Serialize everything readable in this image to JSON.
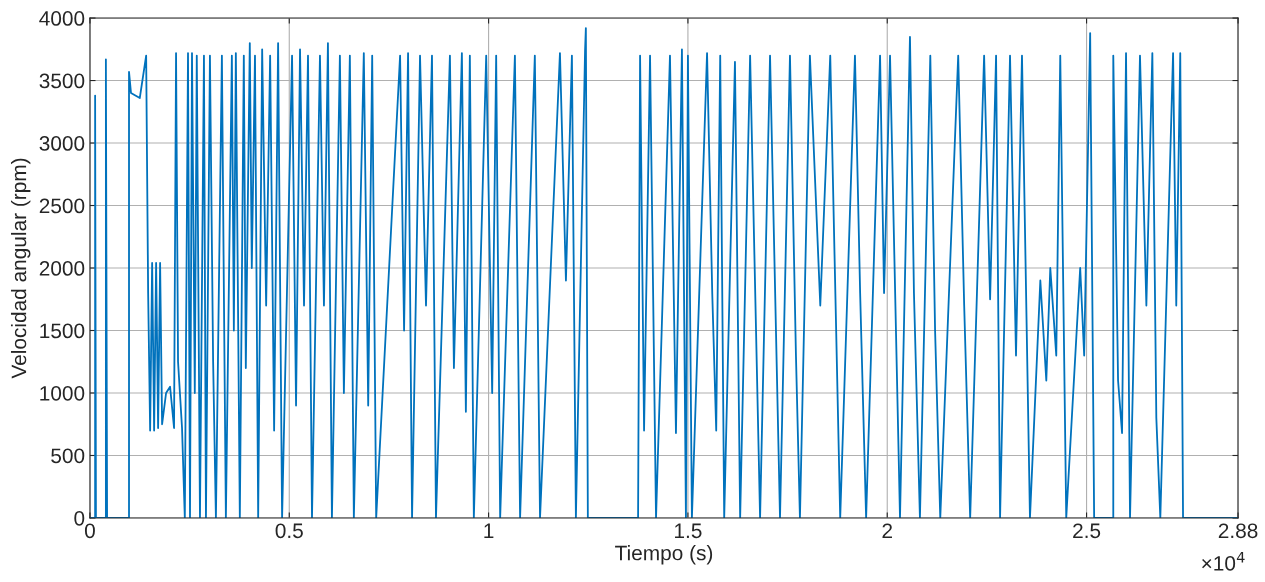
{
  "chart_data": {
    "type": "line",
    "xlabel": "Tiempo (s)",
    "ylabel": "Velocidad angular (rpm)",
    "annotations": [
      "×10$^{4}$"
    ],
    "xlim": [
      0,
      2.88
    ],
    "xticks": [
      0,
      0.5,
      1,
      1.5,
      2,
      2.5,
      2.88
    ],
    "ylim": [
      0,
      4000
    ],
    "yticks": [
      0,
      500,
      1000,
      1500,
      2000,
      2500,
      3000,
      3500,
      4000
    ],
    "grid": true,
    "line_style": "solid",
    "marker": "none",
    "series": [
      {
        "color": "#0072bd",
        "x": [
          0,
          0.013,
          0.013,
          0.015,
          0.04,
          0.04,
          0.043,
          0.098,
          0.098,
          0.103,
          0.125,
          0.141,
          0.146,
          0.151,
          0.156,
          0.161,
          0.166,
          0.171,
          0.176,
          0.181,
          0.191,
          0.201,
          0.211,
          0.216,
          0.221,
          0.231,
          0.238,
          0.246,
          0.251,
          0.256,
          0.263,
          0.268,
          0.276,
          0.286,
          0.291,
          0.301,
          0.309,
          0.316,
          0.331,
          0.336,
          0.341,
          0.356,
          0.361,
          0.366,
          0.376,
          0.386,
          0.391,
          0.401,
          0.406,
          0.414,
          0.422,
          0.432,
          0.442,
          0.452,
          0.462,
          0.472,
          0.482,
          0.507,
          0.517,
          0.527,
          0.537,
          0.547,
          0.557,
          0.577,
          0.587,
          0.597,
          0.607,
          0.627,
          0.637,
          0.652,
          0.662,
          0.687,
          0.698,
          0.708,
          0.718,
          0.778,
          0.788,
          0.798,
          0.808,
          0.828,
          0.843,
          0.858,
          0.868,
          0.903,
          0.913,
          0.933,
          0.943,
          0.953,
          0.963,
          0.994,
          1.009,
          1.019,
          1.029,
          1.066,
          1.079,
          1.116,
          1.129,
          1.179,
          1.194,
          1.209,
          1.219,
          1.242,
          1.244,
          1.249,
          1.375,
          1.38,
          1.39,
          1.405,
          1.42,
          1.455,
          1.47,
          1.485,
          1.495,
          1.5,
          1.51,
          1.548,
          1.561,
          1.571,
          1.581,
          1.591,
          1.618,
          1.631,
          1.656,
          1.681,
          1.706,
          1.731,
          1.756,
          1.771,
          1.781,
          1.806,
          1.832,
          1.857,
          1.882,
          1.919,
          1.932,
          1.947,
          1.982,
          1.992,
          2.007,
          2.032,
          2.057,
          2.067,
          2.082,
          2.108,
          2.12,
          2.133,
          2.178,
          2.193,
          2.208,
          2.243,
          2.258,
          2.273,
          2.283,
          2.308,
          2.323,
          2.338,
          2.358,
          2.384,
          2.399,
          2.409,
          2.424,
          2.434,
          2.449,
          2.484,
          2.494,
          2.509,
          2.519,
          2.567,
          2.567,
          2.579,
          2.589,
          2.599,
          2.609,
          2.634,
          2.65,
          2.665,
          2.675,
          2.685,
          2.717,
          2.725,
          2.735,
          2.742,
          2.88
        ],
        "values": [
          0,
          0,
          3380,
          0,
          0,
          3670,
          0,
          0,
          3570,
          3400,
          3360,
          3700,
          1800,
          700,
          2040,
          700,
          2040,
          720,
          2040,
          750,
          1000,
          1050,
          720,
          3720,
          1250,
          720,
          0,
          3720,
          0,
          3720,
          1000,
          3700,
          0,
          3700,
          0,
          3700,
          1250,
          0,
          3700,
          1800,
          0,
          3700,
          1500,
          3720,
          0,
          3700,
          1200,
          3800,
          2000,
          3700,
          0,
          3750,
          1700,
          3700,
          700,
          3800,
          0,
          3700,
          900,
          3750,
          1700,
          3700,
          0,
          3700,
          1700,
          3800,
          0,
          3700,
          1000,
          3700,
          0,
          3720,
          900,
          3700,
          0,
          3700,
          1500,
          3720,
          0,
          3700,
          1700,
          3700,
          0,
          3700,
          1200,
          3720,
          850,
          3700,
          0,
          3700,
          1000,
          3700,
          0,
          3700,
          0,
          3700,
          0,
          3720,
          1900,
          3700,
          0,
          3740,
          3920,
          0,
          0,
          3700,
          700,
          3700,
          0,
          3700,
          680,
          3750,
          0,
          3700,
          0,
          3720,
          1800,
          700,
          3700,
          0,
          3650,
          0,
          3700,
          0,
          3700,
          0,
          3700,
          1300,
          0,
          3700,
          1700,
          3700,
          0,
          3700,
          1800,
          0,
          3700,
          1800,
          3700,
          0,
          3850,
          1800,
          0,
          3700,
          1500,
          0,
          3700,
          1700,
          0,
          3700,
          1750,
          3700,
          0,
          3700,
          1300,
          3700,
          0,
          1900,
          1100,
          2000,
          1300,
          3700,
          0,
          2000,
          1300,
          3880,
          0,
          0,
          3700,
          1100,
          680,
          3720,
          0,
          3700,
          1700,
          3720,
          800,
          0,
          3720,
          1700,
          3720,
          0,
          0
        ]
      }
    ]
  }
}
